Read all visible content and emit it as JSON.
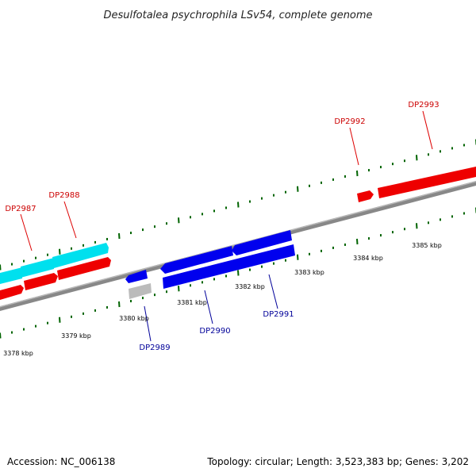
{
  "title": "Desulfotalea psychrophila LSv54, complete genome",
  "footer": {
    "accession": "Accession: NC_006138",
    "topology": "Topology: circular; Length: 3,523,383 bp; Genes: 3,202"
  },
  "colors": {
    "forward_gene": "#ff0000",
    "forward_label": "#cc0000",
    "reverse_gene": "#0000ee",
    "reverse_label": "#000099",
    "rna_feature": "#00e5ee",
    "pseudo_feature": "#bbbbbb",
    "backbone": "#888888",
    "tick": "#006400"
  },
  "chart_data": {
    "type": "diagram",
    "title": "Desulfotalea psychrophila LSv54, complete genome",
    "scale_labels": [
      {
        "kbp": 3378,
        "text": "3378 kbp"
      },
      {
        "kbp": 3379,
        "text": "3379 kbp"
      },
      {
        "kbp": 3380,
        "text": "3380 kbp"
      },
      {
        "kbp": 3381,
        "text": "3381 kbp"
      },
      {
        "kbp": 3382,
        "text": "3382 kbp"
      },
      {
        "kbp": 3383,
        "text": "3383 kbp"
      },
      {
        "kbp": 3384,
        "text": "3384 kbp"
      },
      {
        "kbp": 3385,
        "text": "3385 kbp"
      }
    ],
    "genes": [
      {
        "name": "DP2987",
        "strand": "+"
      },
      {
        "name": "DP2988",
        "strand": "+"
      },
      {
        "name": "DP2989",
        "strand": "-"
      },
      {
        "name": "DP2990",
        "strand": "-"
      },
      {
        "name": "DP2991",
        "strand": "-"
      },
      {
        "name": "DP2992",
        "strand": "+"
      },
      {
        "name": "DP2993",
        "strand": "+"
      }
    ]
  }
}
